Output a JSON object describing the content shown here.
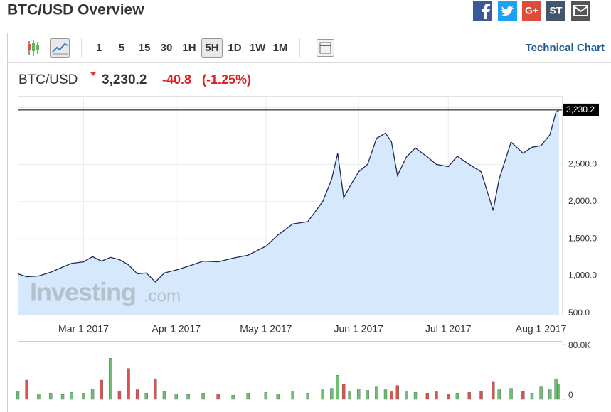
{
  "header": {
    "title": "BTC/USD Overview",
    "share": [
      "G+",
      "ST"
    ]
  },
  "toolbar": {
    "intervals": [
      {
        "label": "1"
      },
      {
        "label": "5"
      },
      {
        "label": "15"
      },
      {
        "label": "30"
      },
      {
        "label": "1H"
      },
      {
        "label": "5H",
        "active": true
      },
      {
        "label": "1D"
      },
      {
        "label": "1W"
      },
      {
        "label": "1M"
      }
    ],
    "link": "Technical Chart"
  },
  "quote": {
    "symbol": "BTC/USD",
    "price": "3,230.2",
    "change": "-40.8",
    "change_percent": "(-1.25%)"
  },
  "watermark": {
    "brand": "Investing",
    "suffix": ".com"
  },
  "chart_data": {
    "type": "area",
    "x": [
      "2017-02-07",
      "2017-02-10",
      "2017-02-14",
      "2017-02-18",
      "2017-02-22",
      "2017-02-25",
      "2017-03-01",
      "2017-03-04",
      "2017-03-07",
      "2017-03-10",
      "2017-03-13",
      "2017-03-16",
      "2017-03-19",
      "2017-03-22",
      "2017-03-25",
      "2017-03-28",
      "2017-04-01",
      "2017-04-05",
      "2017-04-10",
      "2017-04-15",
      "2017-04-20",
      "2017-04-25",
      "2017-05-01",
      "2017-05-05",
      "2017-05-10",
      "2017-05-15",
      "2017-05-20",
      "2017-05-23",
      "2017-05-25",
      "2017-05-27",
      "2017-05-29",
      "2017-06-01",
      "2017-06-04",
      "2017-06-07",
      "2017-06-10",
      "2017-06-12",
      "2017-06-14",
      "2017-06-17",
      "2017-06-20",
      "2017-06-24",
      "2017-06-27",
      "2017-07-01",
      "2017-07-04",
      "2017-07-08",
      "2017-07-12",
      "2017-07-16",
      "2017-07-18",
      "2017-07-22",
      "2017-07-26",
      "2017-07-29",
      "2017-08-01",
      "2017-08-04",
      "2017-08-06",
      "2017-08-07"
    ],
    "series": [
      {
        "name": "BTC/USD",
        "color": "#1f2a55",
        "fill": "#d6e8fb",
        "values": [
          1030,
          990,
          1000,
          1050,
          1120,
          1170,
          1190,
          1260,
          1200,
          1250,
          1220,
          1150,
          1030,
          1040,
          920,
          1040,
          1080,
          1130,
          1200,
          1190,
          1240,
          1280,
          1400,
          1550,
          1700,
          1730,
          2000,
          2300,
          2650,
          2050,
          2200,
          2400,
          2500,
          2850,
          2920,
          2800,
          2350,
          2600,
          2720,
          2600,
          2500,
          2470,
          2610,
          2500,
          2400,
          1880,
          2300,
          2800,
          2650,
          2730,
          2750,
          2900,
          3200,
          3230
        ]
      }
    ],
    "xlim": [
      "2017-02-07",
      "2017-08-08"
    ],
    "xticks": [
      {
        "value": "2017-03-01",
        "label": "Mar 1 2017"
      },
      {
        "value": "2017-04-01",
        "label": "Apr 1 2017"
      },
      {
        "value": "2017-05-01",
        "label": "May 1 2017"
      },
      {
        "value": "2017-06-01",
        "label": "Jun 1 2017"
      },
      {
        "value": "2017-07-01",
        "label": "Jul 1 2017"
      },
      {
        "value": "2017-08-01",
        "label": "Aug 1 2017"
      }
    ],
    "ylim": [
      480,
      3420
    ],
    "yticks": [
      {
        "value": 500,
        "label": "500.0"
      },
      {
        "value": 1000,
        "label": "1,000.0"
      },
      {
        "value": 1500,
        "label": "1,500.0"
      },
      {
        "value": 2000,
        "label": "2,000.0"
      },
      {
        "value": 2500,
        "label": "2,500.0"
      }
    ],
    "previous_close_line": {
      "value": 3271,
      "color": "#c0392b"
    },
    "grid": true,
    "volume": {
      "values": [
        12000,
        28000,
        8000,
        9000,
        7000,
        10000,
        9000,
        15000,
        28000,
        60000,
        12000,
        45000,
        14000,
        9000,
        30000,
        11000,
        8000,
        7000,
        9000,
        8000,
        6000,
        9000,
        10000,
        8000,
        12000,
        9000,
        14000,
        16000,
        35000,
        22000,
        12000,
        15000,
        13000,
        18000,
        14000,
        11000,
        20000,
        12000,
        10000,
        9000,
        11000,
        8000,
        9000,
        10000,
        12000,
        25000,
        14000,
        16000,
        12000,
        9000,
        18000,
        14000,
        30000,
        22000
      ],
      "ylim": [
        0,
        80000
      ],
      "yticks": [
        {
          "value": 80000,
          "label": "80.0K"
        },
        0
      ],
      "up_color": "#6cc071",
      "down_color": "#d9534f"
    }
  }
}
